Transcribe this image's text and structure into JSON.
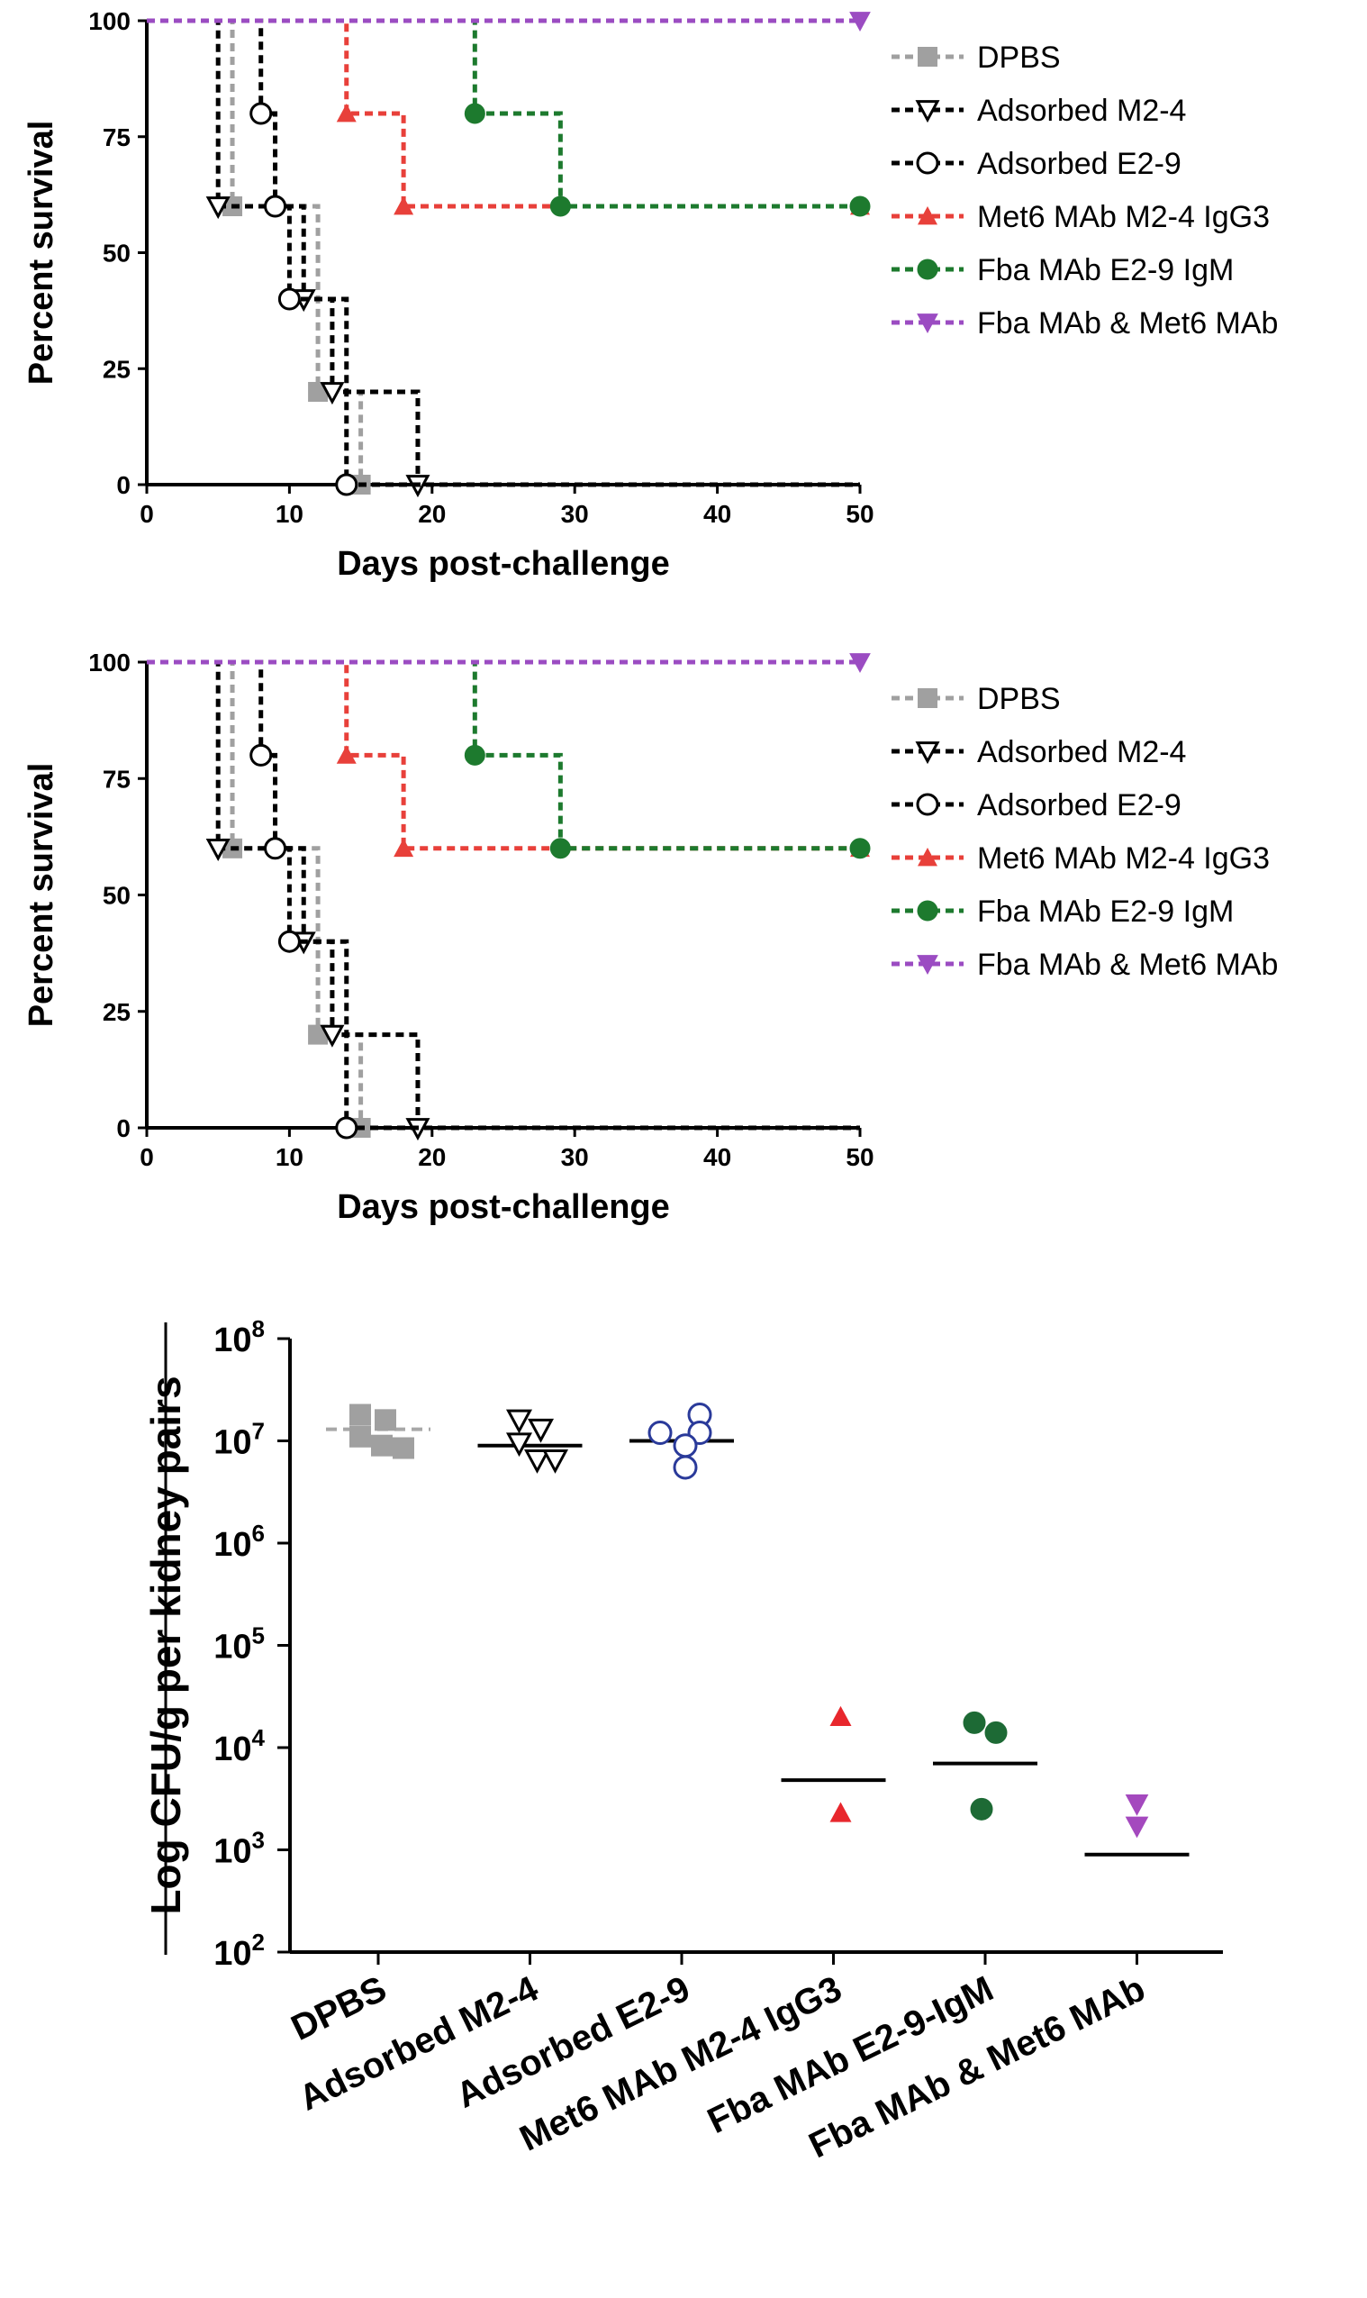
{
  "chart_data": [
    {
      "type": "line",
      "title": "",
      "xlabel": "Days post-challenge",
      "ylabel": "Percent survival",
      "xlim": [
        0,
        50
      ],
      "ylim": [
        0,
        100
      ],
      "xticks": [
        "0",
        "10",
        "20",
        "30",
        "40",
        "50"
      ],
      "yticks": [
        "0",
        "25",
        "50",
        "75",
        "100"
      ],
      "grid": false,
      "legend_position": "right",
      "series": [
        {
          "name": "DPBS",
          "color": "#a0a0a0",
          "marker": "square",
          "x": [
            0,
            6,
            12,
            15,
            50
          ],
          "y": [
            100,
            60,
            20,
            0,
            0
          ]
        },
        {
          "name": "Adsorbed M2-4",
          "color": "#000000",
          "marker": "triangle-down-open",
          "x": [
            0,
            5,
            11,
            13,
            19,
            50
          ],
          "y": [
            100,
            60,
            40,
            20,
            0,
            0
          ]
        },
        {
          "name": "Adsorbed E2-9",
          "color": "#000000",
          "marker": "circle-open",
          "x": [
            0,
            8,
            9,
            10,
            14,
            50
          ],
          "y": [
            100,
            80,
            60,
            40,
            0,
            0
          ]
        },
        {
          "name": "Met6 MAb M2-4 IgG3",
          "color": "#e8403a",
          "marker": "triangle-up",
          "x": [
            0,
            14,
            18,
            50
          ],
          "y": [
            100,
            80,
            60,
            60
          ]
        },
        {
          "name": "Fba MAb E2-9 IgM",
          "color": "#1d7a2e",
          "marker": "circle",
          "x": [
            0,
            23,
            29,
            50
          ],
          "y": [
            100,
            80,
            60,
            60
          ]
        },
        {
          "name": "Fba MAb & Met6 MAb",
          "color": "#9b4cc2",
          "marker": "triangle-down",
          "x": [
            0,
            50
          ],
          "y": [
            100,
            100
          ]
        }
      ]
    },
    {
      "type": "line",
      "title": "",
      "xlabel": "Days post-challenge",
      "ylabel": "Percent survival",
      "xlim": [
        0,
        50
      ],
      "ylim": [
        0,
        100
      ],
      "xticks": [
        "0",
        "10",
        "20",
        "30",
        "40",
        "50"
      ],
      "yticks": [
        "0",
        "25",
        "50",
        "75",
        "100"
      ],
      "grid": false,
      "legend_position": "right",
      "series": [
        {
          "name": "DPBS",
          "color": "#a0a0a0",
          "marker": "square",
          "x": [
            0,
            6,
            12,
            15,
            50
          ],
          "y": [
            100,
            60,
            20,
            0,
            0
          ]
        },
        {
          "name": "Adsorbed M2-4",
          "color": "#000000",
          "marker": "triangle-down-open",
          "x": [
            0,
            5,
            11,
            13,
            19,
            50
          ],
          "y": [
            100,
            60,
            40,
            20,
            0,
            0
          ]
        },
        {
          "name": "Adsorbed E2-9",
          "color": "#000000",
          "marker": "circle-open",
          "x": [
            0,
            8,
            9,
            10,
            14,
            50
          ],
          "y": [
            100,
            80,
            60,
            40,
            0,
            0
          ]
        },
        {
          "name": "Met6 MAb M2-4 IgG3",
          "color": "#e8403a",
          "marker": "triangle-up",
          "x": [
            0,
            14,
            18,
            50
          ],
          "y": [
            100,
            80,
            60,
            60
          ]
        },
        {
          "name": "Fba MAb E2-9 IgM",
          "color": "#1d7a2e",
          "marker": "circle",
          "x": [
            0,
            23,
            29,
            50
          ],
          "y": [
            100,
            80,
            60,
            60
          ]
        },
        {
          "name": "Fba MAb & Met6 MAb",
          "color": "#9b4cc2",
          "marker": "triangle-down",
          "x": [
            0,
            50
          ],
          "y": [
            100,
            100
          ]
        }
      ]
    },
    {
      "type": "scatter",
      "title": "",
      "xlabel": "",
      "ylabel": "Log CFU/g per kidney pairs",
      "yscale": "log",
      "ylim": [
        100,
        100000000
      ],
      "yticks": [
        {
          "base": "10",
          "exp": "8"
        },
        {
          "base": "10",
          "exp": "7"
        },
        {
          "base": "10",
          "exp": "6"
        },
        {
          "base": "10",
          "exp": "5"
        },
        {
          "base": "10",
          "exp": "4"
        },
        {
          "base": "10",
          "exp": "3"
        },
        {
          "base": "10",
          "exp": "2"
        }
      ],
      "grid": false,
      "categories": [
        "DPBS",
        "Adsorbed M2-4",
        "Adsorbed E2-9",
        "Met6 MAb M2-4 IgG3",
        "Fba MAb E2-9-IgM",
        "Fba MAb & Met6 MAb"
      ],
      "groups": [
        {
          "category": "DPBS",
          "color": "#a0a0a0",
          "marker": "square",
          "line_style": "dashed",
          "median": 13000000,
          "points": [
            {
              "y": 18000000,
              "offset": -0.25
            },
            {
              "y": 16000000,
              "offset": 0.1
            },
            {
              "y": 11000000,
              "offset": -0.25
            },
            {
              "y": 9000000,
              "offset": 0.05
            },
            {
              "y": 8500000,
              "offset": 0.35
            }
          ]
        },
        {
          "category": "Adsorbed M2-4",
          "color": "#000000",
          "marker": "triangle-down-open",
          "line_style": "solid",
          "median": 9000000,
          "points": [
            {
              "y": 16000000,
              "offset": -0.15
            },
            {
              "y": 13000000,
              "offset": 0.15
            },
            {
              "y": 9500000,
              "offset": -0.15
            },
            {
              "y": 6500000,
              "offset": 0.1
            },
            {
              "y": 6500000,
              "offset": 0.35
            }
          ]
        },
        {
          "category": "Adsorbed E2-9",
          "color": "#2a3a9a",
          "marker": "circle-open",
          "line_style": "solid",
          "median": 10000000,
          "points": [
            {
              "y": 12000000,
              "offset": -0.3
            },
            {
              "y": 18000000,
              "offset": 0.25
            },
            {
              "y": 12000000,
              "offset": 0.25
            },
            {
              "y": 9000000,
              "offset": 0.05
            },
            {
              "y": 5500000,
              "offset": 0.05
            }
          ]
        },
        {
          "category": "Met6 MAb M2-4 IgG3",
          "color": "#e8272d",
          "marker": "triangle-up",
          "line_style": "solid",
          "median": 4800,
          "points": [
            {
              "y": 20000,
              "offset": 0.1
            },
            {
              "y": 2300,
              "offset": 0.1
            }
          ]
        },
        {
          "category": "Fba MAb E2-9-IgM",
          "color": "#1d6a35",
          "marker": "circle",
          "line_style": "solid",
          "median": 7000,
          "points": [
            {
              "y": 17500,
              "offset": -0.15
            },
            {
              "y": 14000,
              "offset": 0.15
            },
            {
              "y": 2500,
              "offset": -0.05
            }
          ]
        },
        {
          "category": "Fba MAb & Met6 MAb",
          "color": "#a449be",
          "marker": "triangle-down",
          "line_style": "solid",
          "median": 900,
          "points": [
            {
              "y": 2800,
              "offset": 0.0
            },
            {
              "y": 1700,
              "offset": 0.0
            }
          ]
        }
      ]
    }
  ]
}
